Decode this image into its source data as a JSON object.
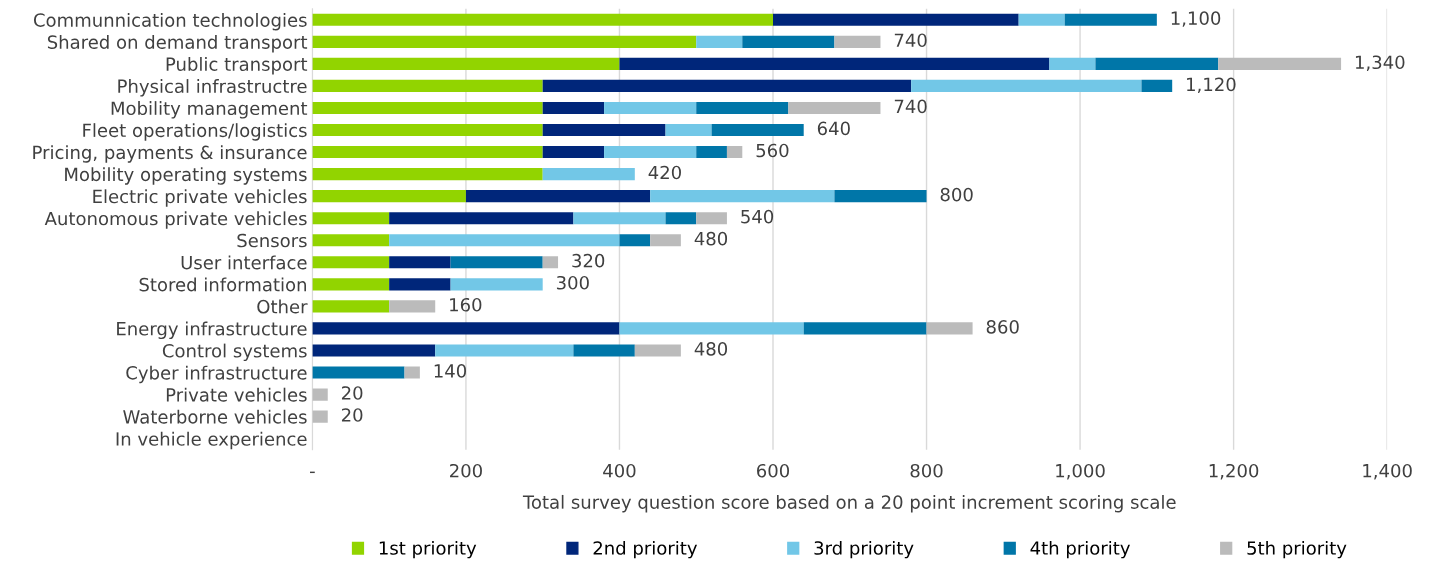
{
  "chart_data": {
    "type": "bar",
    "orientation": "horizontal",
    "stacked": true,
    "xlabel": "Total survey question score based on a 20 point increment scoring scale",
    "categories": [
      "Communnication technologies",
      "Shared on demand transport",
      "Public transport",
      "Physical infrastructre",
      "Mobility management",
      "Fleet operations/logistics",
      "Pricing, payments & insurance",
      "Mobility operating systems",
      "Electric private vehicles",
      "Autonomous private vehicles",
      "Sensors",
      "User interface",
      "Stored information",
      "Other",
      "Energy infrastructure",
      "Control systems",
      "Cyber infrastructure",
      "Private vehicles",
      "Waterborne vehicles",
      "In vehicle experience"
    ],
    "series": [
      {
        "name": "1st priority",
        "color": "#92d400",
        "values": [
          600,
          500,
          400,
          300,
          300,
          300,
          300,
          300,
          200,
          100,
          100,
          100,
          100,
          100,
          0,
          0,
          0,
          0,
          0,
          0
        ]
      },
      {
        "name": "2nd priority",
        "color": "#00267a",
        "values": [
          320,
          0,
          560,
          480,
          80,
          160,
          80,
          0,
          240,
          240,
          0,
          80,
          80,
          0,
          400,
          160,
          0,
          0,
          0,
          0
        ]
      },
      {
        "name": "3rd priority",
        "color": "#72c7e7",
        "values": [
          60,
          60,
          60,
          300,
          120,
          60,
          120,
          120,
          240,
          120,
          300,
          0,
          120,
          0,
          240,
          180,
          0,
          0,
          0,
          0
        ]
      },
      {
        "name": "4th priority",
        "color": "#0076a8",
        "values": [
          120,
          120,
          160,
          40,
          120,
          120,
          40,
          0,
          120,
          40,
          40,
          120,
          0,
          0,
          160,
          80,
          120,
          0,
          0,
          0
        ]
      },
      {
        "name": "5th priority",
        "color": "#bbbbbb",
        "values": [
          0,
          60,
          160,
          0,
          120,
          0,
          20,
          0,
          0,
          40,
          40,
          20,
          0,
          60,
          60,
          60,
          20,
          20,
          20,
          0
        ]
      }
    ],
    "totals": [
      "1,100",
      "740",
      "1,340",
      "1,120",
      "740",
      "640",
      "560",
      "420",
      "800",
      "540",
      "480",
      "320",
      "300",
      "160",
      "860",
      "480",
      "140",
      "20",
      "20",
      null
    ],
    "xlim": [
      0,
      1400
    ],
    "xticks": [
      {
        "value": 0,
        "label": "-"
      },
      200,
      400,
      600,
      800,
      {
        "value": 1000,
        "label": "1,000"
      },
      {
        "value": 1200,
        "label": "1,200"
      },
      {
        "value": 1400,
        "label": "1,400"
      }
    ],
    "grid": "x",
    "legend": "bottom"
  }
}
